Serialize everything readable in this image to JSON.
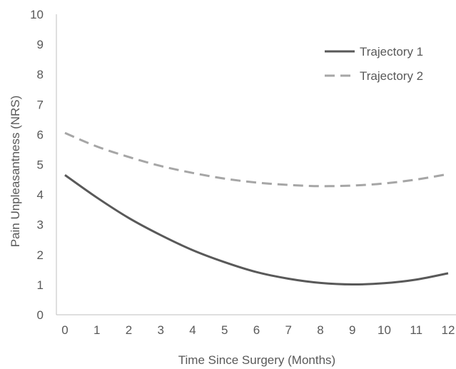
{
  "chart_data": {
    "type": "line",
    "title": "",
    "xlabel": "Time Since Surgery (Months)",
    "ylabel": "Pain Unpleasantness (NRS)",
    "xlim": [
      0,
      12
    ],
    "ylim": [
      0,
      10
    ],
    "x_ticks": [
      "0",
      "1",
      "2",
      "3",
      "4",
      "5",
      "6",
      "7",
      "8",
      "9",
      "10",
      "11",
      "12"
    ],
    "y_ticks": [
      "0",
      "1",
      "2",
      "3",
      "4",
      "5",
      "6",
      "7",
      "8",
      "9",
      "10"
    ],
    "grid": false,
    "legend_position": "top-right",
    "x": [
      0,
      1,
      2,
      3,
      4,
      5,
      6,
      7,
      8,
      9,
      10,
      11,
      12
    ],
    "series": [
      {
        "name": "Trajectory 1",
        "color": "#595959",
        "dash": "solid",
        "values": [
          4.65,
          3.9,
          3.22,
          2.65,
          2.15,
          1.75,
          1.42,
          1.2,
          1.06,
          1.01,
          1.05,
          1.17,
          1.38
        ]
      },
      {
        "name": "Trajectory 2",
        "color": "#a6a6a6",
        "dash": "dashed",
        "values": [
          6.05,
          5.6,
          5.25,
          4.95,
          4.72,
          4.53,
          4.4,
          4.32,
          4.28,
          4.3,
          4.37,
          4.5,
          4.68
        ]
      }
    ]
  }
}
